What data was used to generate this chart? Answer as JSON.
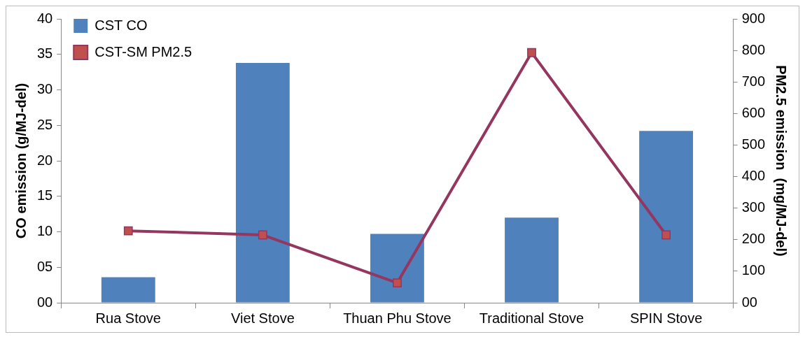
{
  "chart_data": {
    "type": "bar",
    "categories": [
      "Rua Stove",
      "Viet Stove",
      "Thuan Phu Stove",
      "Traditional Stove",
      "SPIN Stove"
    ],
    "ylabel": "CO emission (g/MJ-del)",
    "y2label": "PM2.5 emission  (mg/MJ-del)",
    "series": [
      {
        "name": "CST CO",
        "color": "#4f81bd",
        "values": [
          3.6,
          33.8,
          9.7,
          12.0,
          24.2
        ]
      },
      {
        "name": "CST-SM PM2.5",
        "type": "line",
        "axis": "y2",
        "color": "#953660",
        "marker": "square",
        "values": [
          228,
          215,
          63,
          793,
          215
        ]
      }
    ],
    "ylim": [
      0,
      40
    ],
    "yticks": [
      {
        "value": 0,
        "label": "00"
      },
      {
        "value": 5,
        "label": "05"
      },
      10,
      15,
      20,
      25,
      30,
      35,
      40
    ],
    "y2lim": [
      0,
      900
    ],
    "y2ticks": [
      {
        "value": 0,
        "label": "00"
      },
      100,
      200,
      300,
      400,
      500,
      600,
      700,
      800,
      900
    ],
    "grid": false,
    "legend": "top left"
  }
}
